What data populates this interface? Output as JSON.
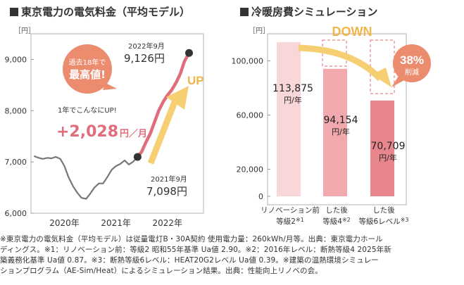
{
  "left": {
    "title": "東京電力の電気料金（平均モデル）",
    "unit": "［円］",
    "callout_period": "過去18年で",
    "callout_record": "最高値!",
    "increase_label": "1年でこんなにUP!",
    "increase_value": "+2,028",
    "increase_unit": "円／月",
    "up_label": "UP",
    "point_high_date": "2022年9月",
    "point_high_value": "9,126円",
    "point_low_date": "2021年9月",
    "point_low_value": "7,098円",
    "colors": {
      "gray_line": "#777777",
      "red_line": "#e06d7b",
      "badge": "#ec8c6e",
      "up": "#f2c14a"
    },
    "chart_data": {
      "type": "line",
      "xlabel": "",
      "ylabel": "［円］",
      "ylim": [
        6000,
        9500
      ],
      "yticks": [
        "9,000",
        "8,000",
        "7,000",
        "6,000"
      ],
      "ytick_values": [
        9000,
        8000,
        7000,
        6000
      ],
      "xticks": [
        "2020年",
        "2021年",
        "2022年"
      ],
      "xtick_values": [
        2020.25,
        2021.25,
        2022.25
      ],
      "series": [
        {
          "color": "gray",
          "x": [
            2019.67,
            2019.75,
            2019.83,
            2019.92,
            2020.0,
            2020.08,
            2020.17,
            2020.25,
            2020.33,
            2020.42,
            2020.5,
            2020.58,
            2020.67,
            2020.75,
            2020.83,
            2020.92,
            2021.0,
            2021.08,
            2021.17,
            2021.25,
            2021.33,
            2021.42,
            2021.5,
            2021.58,
            2021.67
          ],
          "y": [
            7110,
            7080,
            7060,
            7080,
            7070,
            7100,
            7060,
            6920,
            6700,
            6520,
            6400,
            6300,
            6280,
            6380,
            6500,
            6580,
            6580,
            6700,
            6850,
            6920,
            6960,
            7030,
            6950,
            7000,
            7098
          ]
        },
        {
          "color": "red",
          "x": [
            2021.67,
            2021.75,
            2021.83,
            2021.92,
            2022.0,
            2022.08,
            2022.17,
            2022.25,
            2022.33,
            2022.42,
            2022.5,
            2022.58,
            2022.67
          ],
          "y": [
            7098,
            7200,
            7380,
            7560,
            7780,
            8000,
            8180,
            8300,
            8400,
            8550,
            8720,
            8960,
            9126
          ]
        }
      ]
    }
  },
  "right": {
    "title": "冷暖房費シミュレーション",
    "unit": "［円］",
    "down_label": "DOWN",
    "reduction_value": "38%",
    "reduction_label": "削減",
    "colors": {
      "bar1": "#f9d7d9",
      "bar2": "#f1a9ad",
      "bar3": "#e8868d",
      "badge": "#ec8c6e",
      "arrow": "#f2c14a"
    },
    "chart_data": {
      "type": "bar",
      "ylabel": "［円］",
      "ylim": [
        0,
        120000
      ],
      "yticks": [
        "100,000",
        "60,000",
        "20,000",
        "0"
      ],
      "ytick_values": [
        100000,
        60000,
        20000,
        0
      ],
      "categories": [
        "リノベーション前 等級2※1",
        "した後 等級4※2",
        "した後 等級6レベル※3"
      ],
      "values": [
        113875,
        94154,
        70709
      ],
      "value_labels": [
        "113,875",
        "94,154",
        "70,709"
      ],
      "value_unit": "円/年"
    },
    "category_lines": [
      {
        "line1": "リノベーション前",
        "line2": "等級2",
        "note": "※1"
      },
      {
        "line1": "した後",
        "line2": "等級4",
        "note": "※2"
      },
      {
        "line1": "した後",
        "line2": "等級6レベル",
        "note": "※3"
      }
    ]
  },
  "footnote": {
    "line1": "※東京電力の電気料金（平均モデル）は従量電灯B・30A契約 使用電力量：260kWh/月等。出典：東京電力ホール",
    "line2": "ディングス。※1：リノベーション前：等級2 昭和55年基準 Ua値 2.90。※2：2016年レベル：断熱等級4 2025年新",
    "line3": "築義務化基準 Ua値 0.87。※3：断熱等級6レベル：HEAT20G2レベル Ua値 0.39。※建築の温熱環境シミュレー",
    "line4": "ションプログラム（AE-Sim/Heat）によるシミュレーション結果。出典：性能向上リノベの会。"
  }
}
